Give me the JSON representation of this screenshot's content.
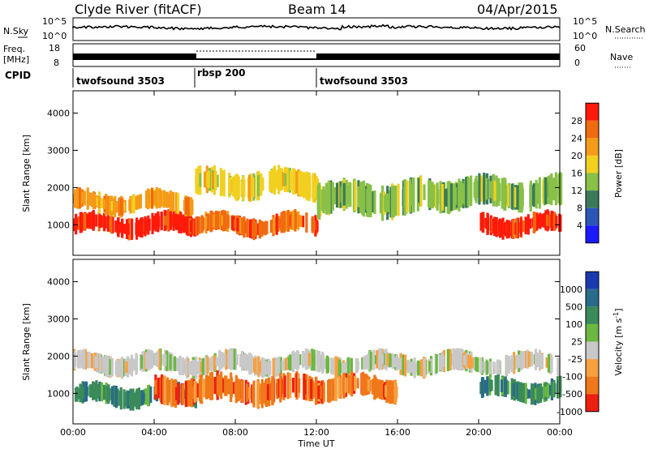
{
  "header": {
    "station": "Clyde River (fitACF)",
    "beam": "Beam 14",
    "date": "04/Apr/2015"
  },
  "strips": {
    "nsky_label": "N.Sky",
    "nsearch_label": "N.Search",
    "nsky_ticks": [
      "10^5",
      "10^0"
    ],
    "nsearch_ticks": [
      "10^5",
      "10^0"
    ],
    "freq_label_top": "Freq.",
    "freq_label_unit": "[MHz]",
    "freq_ticks": [
      "18",
      "8"
    ],
    "nave_label": "Nave",
    "nave_ticks": [
      "60",
      "0"
    ],
    "cpid_label": "CPID"
  },
  "cpid_segments": [
    {
      "label": "twofsound 3503",
      "start_hour": 0
    },
    {
      "label": "rbsp 200",
      "start_hour": 6
    },
    {
      "label": "twofsound 3503",
      "start_hour": 12
    }
  ],
  "chart_data": [
    {
      "type": "heatmap",
      "title": "",
      "ylabel": "Slant Range [km]",
      "xlabel": "",
      "xlim": [
        0,
        24
      ],
      "ylim": [
        180,
        4600
      ],
      "xticks": [
        "00:00",
        "04:00",
        "08:00",
        "12:00",
        "16:00",
        "20:00",
        "00:00"
      ],
      "yticks": [
        1000,
        2000,
        3000,
        4000
      ],
      "colorbar": {
        "label": "Power [dB]",
        "ticks": [
          "4",
          "8",
          "12",
          "16",
          "20",
          "24",
          "28"
        ],
        "colors": [
          "#1a1aff",
          "#2a56b8",
          "#3a7a5a",
          "#88c048",
          "#f2d020",
          "#f59b18",
          "#f06a10",
          "#ff1a0a"
        ]
      },
      "bands": [
        {
          "hour_start": 0,
          "hour_end": 6,
          "range_km": [
            700,
            1300
          ],
          "power_db": 28
        },
        {
          "hour_start": 0,
          "hour_end": 6,
          "range_km": [
            1300,
            1900
          ],
          "power_db": 22
        },
        {
          "hour_start": 6,
          "hour_end": 12,
          "range_km": [
            700,
            1300
          ],
          "power_db": 26
        },
        {
          "hour_start": 6,
          "hour_end": 12,
          "range_km": [
            1700,
            2500
          ],
          "power_db": 18
        },
        {
          "hour_start": 12,
          "hour_end": 17,
          "range_km": [
            1200,
            2200
          ],
          "power_db": 14
        },
        {
          "hour_start": 17,
          "hour_end": 24,
          "range_km": [
            1400,
            2300
          ],
          "power_db": 12
        },
        {
          "hour_start": 20,
          "hour_end": 24,
          "range_km": [
            700,
            1300
          ],
          "power_db": 28
        }
      ]
    },
    {
      "type": "heatmap",
      "title": "",
      "ylabel": "Slant Range [km]",
      "xlabel": "Time UT",
      "xlim": [
        0,
        24
      ],
      "ylim": [
        180,
        4600
      ],
      "xticks": [
        "00:00",
        "04:00",
        "08:00",
        "12:00",
        "16:00",
        "20:00",
        "00:00"
      ],
      "yticks": [
        1000,
        2000,
        3000,
        4000
      ],
      "colorbar": {
        "label": "Velocity [m s^-1]",
        "ticks": [
          "1000",
          "500",
          "100",
          "25",
          "-25",
          "-100",
          "-500",
          "-1000"
        ],
        "colors": [
          "#1a3ab0",
          "#2a6a8a",
          "#3a8a5a",
          "#6ab840",
          "#c8c8c8",
          "#f7a040",
          "#f07818",
          "#ee2010"
        ]
      },
      "bands": [
        {
          "hour_start": 0,
          "hour_end": 6,
          "range_km": [
            650,
            1250
          ],
          "velocity": 300
        },
        {
          "hour_start": 0,
          "hour_end": 24,
          "range_km": [
            1500,
            2100
          ],
          "velocity": 0
        },
        {
          "hour_start": 4,
          "hour_end": 12,
          "range_km": [
            700,
            1500
          ],
          "velocity": -400
        },
        {
          "hour_start": 12,
          "hour_end": 16,
          "range_km": [
            800,
            1500
          ],
          "velocity": -200
        },
        {
          "hour_start": 20,
          "hour_end": 24,
          "range_km": [
            800,
            1400
          ],
          "velocity": 100
        }
      ]
    }
  ]
}
